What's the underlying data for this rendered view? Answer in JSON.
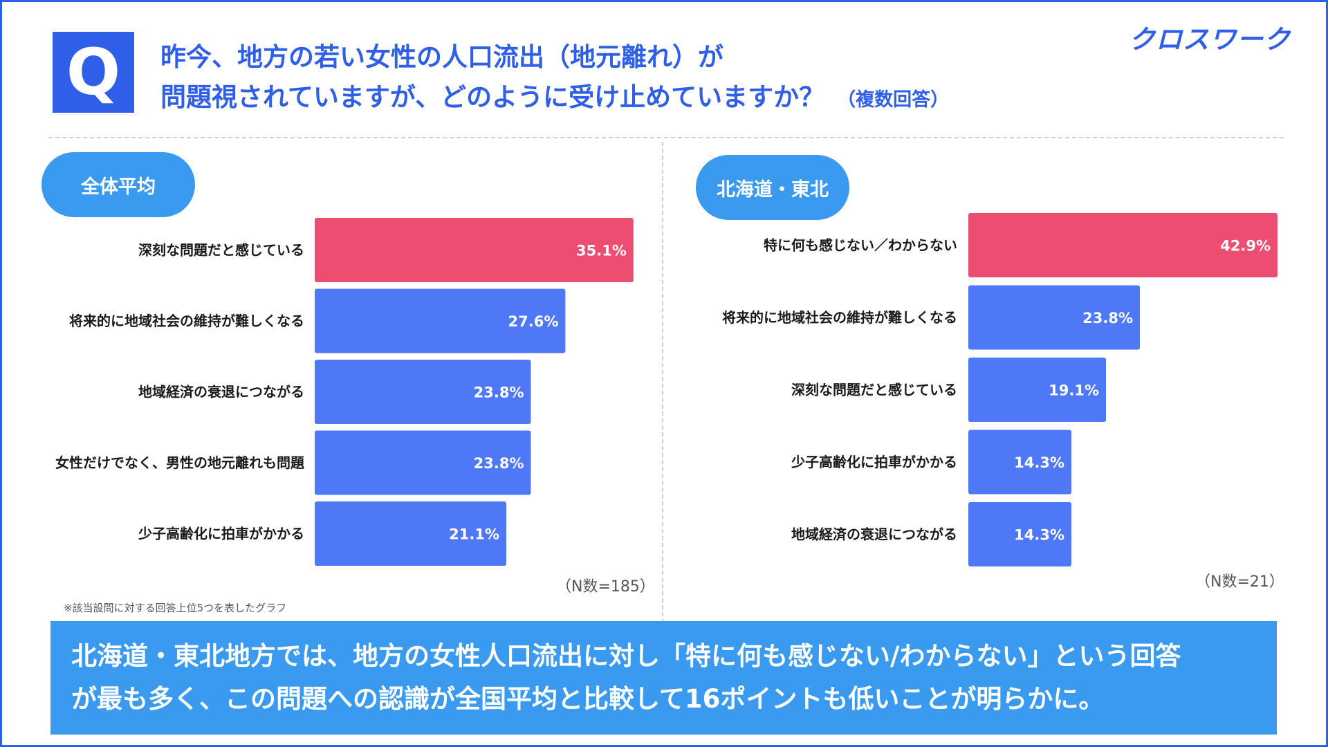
{
  "header": {
    "q_mark": "Q",
    "title_line1": "昨今、地方の若い女性の人口流出（地元離れ）が",
    "title_line2": "問題視されていますが、どのように受け止めていますか？",
    "title_note": "（複数回答）",
    "brand": "クロスワーク"
  },
  "colors": {
    "accent": "#2f5ee8",
    "bar": "#4f78f7",
    "highlight": "#ee4d72",
    "pill": "#3a9af0"
  },
  "chart_data": [
    {
      "type": "bar",
      "orientation": "horizontal",
      "panel_label": "全体平均",
      "categories": [
        "深刻な問題だと感じている",
        "将来的に地域社会の維持が難しくなる",
        "地域経済の衰退につながる",
        "女性だけでなく、男性の地元離れも問題",
        "少子高齢化に拍車がかかる"
      ],
      "values": [
        35.1,
        27.6,
        23.8,
        23.8,
        21.1
      ],
      "value_labels": [
        "35.1%",
        "27.6%",
        "23.8%",
        "23.8%",
        "21.1%"
      ],
      "highlight_index": 0,
      "n_label": "（N数=185）"
    },
    {
      "type": "bar",
      "orientation": "horizontal",
      "panel_label": "北海道・東北",
      "categories": [
        "特に何も感じない／わからない",
        "将来的に地域社会の維持が難しくなる",
        "深刻な問題だと感じている",
        "少子高齢化に拍車がかかる",
        "地域経済の衰退につながる"
      ],
      "values": [
        42.9,
        23.8,
        19.1,
        14.3,
        14.3
      ],
      "value_labels": [
        "42.9%",
        "23.8%",
        "19.1%",
        "14.3%",
        "14.3%"
      ],
      "highlight_index": 0,
      "n_label": "（N数=21）"
    }
  ],
  "footnote": "※該当設問に対する回答上位5つを表したグラフ",
  "summary": {
    "line1": "北海道・東北地方では、地方の女性人口流出に対し「特に何も感じない/わからない」という回答",
    "line2": "が最も多く、この問題への認識が全国平均と比較して16ポイントも低いことが明らかに。"
  }
}
